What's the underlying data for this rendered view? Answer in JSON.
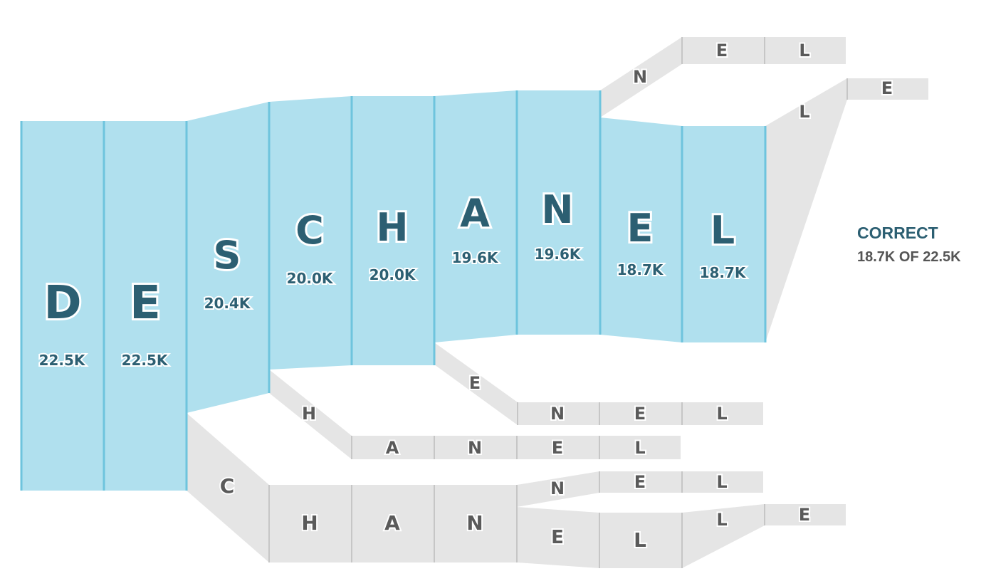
{
  "correct_path": {
    "letters": [
      "D",
      "E",
      "S",
      "C",
      "H",
      "A",
      "N",
      "E",
      "L"
    ],
    "counts": [
      "22.5K",
      "22.5K",
      "20.4K",
      "20.0K",
      "20.0K",
      "19.6K",
      "19.6K",
      "18.7K",
      "18.7K"
    ]
  },
  "legend": {
    "title": "CORRECT",
    "subtitle": "18.7K OF 22.5K"
  },
  "error_branches": {
    "top_n_branch": [
      "N",
      "E",
      "L"
    ],
    "top_l_branch": [
      "L",
      "E"
    ],
    "e_branch": [
      "E",
      "N",
      "E",
      "L"
    ],
    "h_branch": [
      "H",
      "A",
      "N",
      "E",
      "L"
    ],
    "c_branch": [
      "C",
      "H",
      "A",
      "N"
    ],
    "c_n_sub": [
      "N",
      "E",
      "L"
    ],
    "c_e_sub": [
      "E",
      "L",
      "L",
      "E"
    ]
  },
  "colors": {
    "correct_fill": "#b0e0ee",
    "correct_divider": "#6ec4dd",
    "correct_letter": "#2c5f72",
    "count_text": "#2c5f72",
    "error_fill": "#e5e5e5",
    "error_divider": "#c6c6c6",
    "error_letter": "#5a5a5a",
    "legend_title": "#2c5f72",
    "legend_subtitle": "#555555"
  }
}
